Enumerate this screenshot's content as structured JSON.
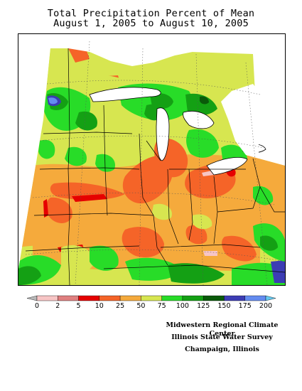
{
  "title_line1": "Total Precipitation Percent of Mean",
  "title_line2": "August 1, 2005 to August 10, 2005",
  "legend": {
    "colors": [
      "#b8b8b8",
      "#f7c5c5",
      "#e08080",
      "#e60000",
      "#f56428",
      "#f5aa3c",
      "#d7e650",
      "#28dc28",
      "#14a014",
      "#0a5a0a",
      "#3c3cb4",
      "#648cf0",
      "#64c8f0"
    ],
    "tick_labels": [
      "0",
      "2",
      "5",
      "10",
      "25",
      "50",
      "75",
      "100",
      "125",
      "150",
      "175",
      "200"
    ]
  },
  "credit": {
    "line1": "Midwestern Regional Climate Center",
    "line2": "Illinois State Water Survey",
    "line3": "Champaign, Illinois"
  }
}
